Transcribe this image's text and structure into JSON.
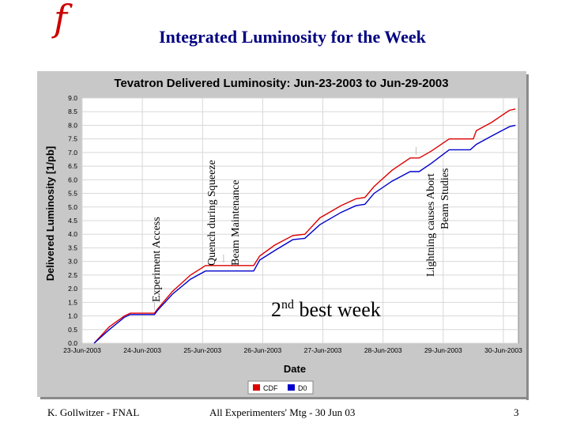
{
  "slide": {
    "logo_glyph": "f",
    "title": "Integrated Luminosity for the Week",
    "footer_left": "K. Gollwitzer - FNAL",
    "footer_center": "All Experimenters' Mtg - 30 Jun 03",
    "page_number": "3"
  },
  "annotations": {
    "experiment_access": "Experiment Access",
    "quench_line1": "Quench during Squeeze",
    "quench_line2": "Beam Maintenance",
    "lightning_line1": "Lightning causes Abort",
    "lightning_line2": "Beam Studies",
    "best_week_num": "2",
    "best_week_sup": "nd",
    "best_week_text": " best week"
  },
  "chart_data": {
    "type": "line",
    "title": "Tevatron Delivered Luminosity:  Jun-23-2003 to Jun-29-2003",
    "xlabel": "Date",
    "ylabel": "Delivered Luminosity [1/pb]",
    "xlim": [
      0,
      7.25
    ],
    "ylim": [
      0,
      9
    ],
    "x_tick_values": [
      0,
      1,
      2,
      3,
      4,
      5,
      6,
      7
    ],
    "x_tick_labels": [
      "23-Jun-2003",
      "24-Jun-2003",
      "25-Jun-2003",
      "26-Jun-2003",
      "27-Jun-2003",
      "28-Jun-2003",
      "29-Jun-2003",
      "30-Jun-2003"
    ],
    "y_tick_values": [
      0,
      0.5,
      1,
      1.5,
      2,
      2.5,
      3,
      3.5,
      4,
      4.5,
      5,
      5.5,
      6,
      6.5,
      7,
      7.5,
      8,
      8.5,
      9
    ],
    "y_tick_labels": [
      "0.0",
      "0.5",
      "1.0",
      "1.5",
      "2.0",
      "2.5",
      "3.0",
      "3.5",
      "4.0",
      "4.5",
      "5.0",
      "5.5",
      "6.0",
      "6.5",
      "7.0",
      "7.5",
      "8.0",
      "8.5",
      "9.0"
    ],
    "grid": true,
    "legend_position": "bottom-center",
    "series": [
      {
        "name": "CDF",
        "color": "#dd0000",
        "points": [
          [
            0.2,
            0.0
          ],
          [
            0.45,
            0.6
          ],
          [
            0.7,
            1.0
          ],
          [
            0.8,
            1.1
          ],
          [
            1.2,
            1.1
          ],
          [
            1.25,
            1.25
          ],
          [
            1.5,
            1.9
          ],
          [
            1.8,
            2.5
          ],
          [
            2.05,
            2.85
          ],
          [
            2.85,
            2.85
          ],
          [
            2.95,
            3.2
          ],
          [
            3.2,
            3.6
          ],
          [
            3.5,
            3.95
          ],
          [
            3.7,
            4.0
          ],
          [
            3.95,
            4.6
          ],
          [
            4.3,
            5.05
          ],
          [
            4.55,
            5.3
          ],
          [
            4.7,
            5.35
          ],
          [
            4.85,
            5.75
          ],
          [
            5.15,
            6.35
          ],
          [
            5.45,
            6.8
          ],
          [
            5.6,
            6.8
          ],
          [
            5.8,
            7.05
          ],
          [
            6.1,
            7.5
          ],
          [
            6.5,
            7.5
          ],
          [
            6.55,
            7.8
          ],
          [
            6.8,
            8.1
          ],
          [
            7.1,
            8.55
          ],
          [
            7.2,
            8.6
          ]
        ]
      },
      {
        "name": "D0",
        "color": "#0000cc",
        "points": [
          [
            0.2,
            0.0
          ],
          [
            0.45,
            0.5
          ],
          [
            0.7,
            0.95
          ],
          [
            0.8,
            1.05
          ],
          [
            1.2,
            1.05
          ],
          [
            1.25,
            1.2
          ],
          [
            1.5,
            1.8
          ],
          [
            1.8,
            2.35
          ],
          [
            2.05,
            2.65
          ],
          [
            2.85,
            2.65
          ],
          [
            2.95,
            3.05
          ],
          [
            3.2,
            3.4
          ],
          [
            3.5,
            3.8
          ],
          [
            3.7,
            3.85
          ],
          [
            3.95,
            4.35
          ],
          [
            4.3,
            4.8
          ],
          [
            4.55,
            5.05
          ],
          [
            4.7,
            5.1
          ],
          [
            4.85,
            5.5
          ],
          [
            5.15,
            5.95
          ],
          [
            5.45,
            6.3
          ],
          [
            5.6,
            6.3
          ],
          [
            5.8,
            6.6
          ],
          [
            6.1,
            7.1
          ],
          [
            6.45,
            7.1
          ],
          [
            6.55,
            7.3
          ],
          [
            6.8,
            7.6
          ],
          [
            7.1,
            7.95
          ],
          [
            7.2,
            8.0
          ]
        ]
      }
    ]
  }
}
